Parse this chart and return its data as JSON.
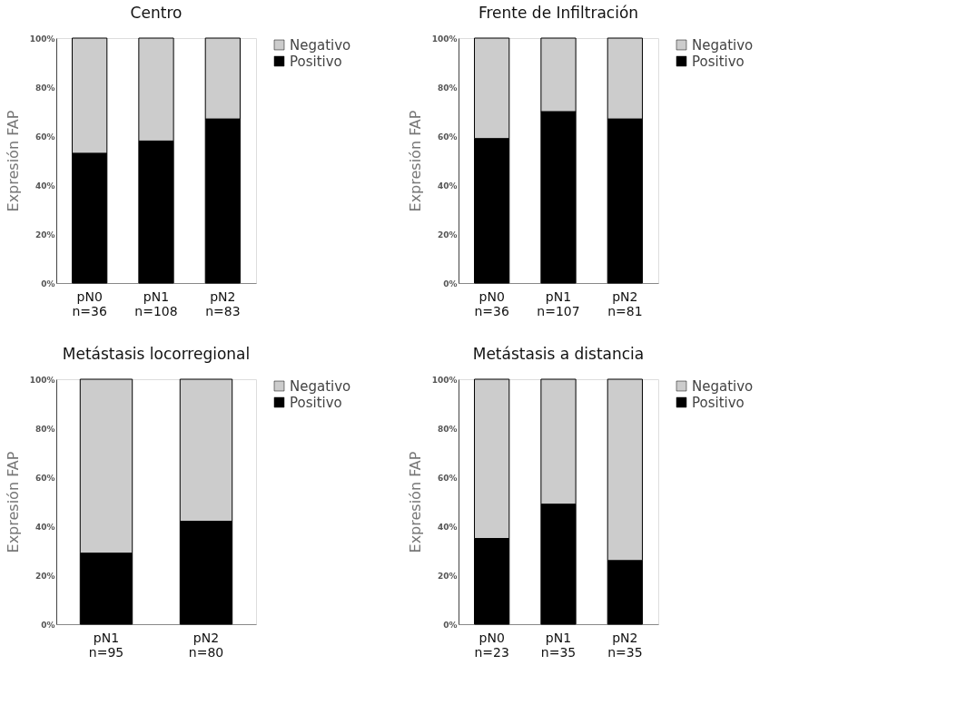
{
  "chart_data": [
    {
      "type": "bar",
      "title": "Centro",
      "ylabel": "Expresión FAP",
      "categories": [
        "pN0\nn=36",
        "pN1\nn=108",
        "pN2\nn=83"
      ],
      "stacked": true,
      "legend": "right",
      "grid": false,
      "ylim": [
        0,
        100
      ],
      "yticks": [
        {
          "value": 0,
          "label": "0%"
        },
        {
          "value": 20,
          "label": "20%"
        },
        {
          "value": 40,
          "label": "40%"
        },
        {
          "value": 60,
          "label": "60%"
        },
        {
          "value": 80,
          "label": "80%"
        },
        {
          "value": 100,
          "label": "100%"
        }
      ],
      "series": [
        {
          "name": "Positivo",
          "color": "#000000",
          "values": [
            53,
            58,
            67
          ]
        },
        {
          "name": "Negativo",
          "color": "#cccccc",
          "values": [
            47,
            42,
            33
          ]
        }
      ]
    },
    {
      "type": "bar",
      "title": "Frente de Infiltración",
      "ylabel": "Expresión FAP",
      "categories": [
        "pN0\nn=36",
        "pN1\nn=107",
        "pN2\nn=81"
      ],
      "stacked": true,
      "legend": "right",
      "grid": false,
      "ylim": [
        0,
        100
      ],
      "yticks": [
        {
          "value": 0,
          "label": "0%"
        },
        {
          "value": 20,
          "label": "20%"
        },
        {
          "value": 40,
          "label": "40%"
        },
        {
          "value": 60,
          "label": "60%"
        },
        {
          "value": 80,
          "label": "80%"
        },
        {
          "value": 100,
          "label": "100%"
        }
      ],
      "series": [
        {
          "name": "Positivo",
          "color": "#000000",
          "values": [
            59,
            70,
            67
          ]
        },
        {
          "name": "Negativo",
          "color": "#cccccc",
          "values": [
            41,
            30,
            33
          ]
        }
      ]
    },
    {
      "type": "bar",
      "title": "Metástasis locorregional",
      "ylabel": "Expresión FAP",
      "categories": [
        "pN1\nn=95",
        "pN2\nn=80"
      ],
      "stacked": true,
      "legend": "right",
      "grid": false,
      "ylim": [
        0,
        100
      ],
      "yticks": [
        {
          "value": 0,
          "label": "0%"
        },
        {
          "value": 20,
          "label": "20%"
        },
        {
          "value": 40,
          "label": "40%"
        },
        {
          "value": 60,
          "label": "60%"
        },
        {
          "value": 80,
          "label": "80%"
        },
        {
          "value": 100,
          "label": "100%"
        }
      ],
      "series": [
        {
          "name": "Positivo",
          "color": "#000000",
          "values": [
            29,
            42
          ]
        },
        {
          "name": "Negativo",
          "color": "#cccccc",
          "values": [
            71,
            58
          ]
        }
      ]
    },
    {
      "type": "bar",
      "title": "Metástasis a distancia",
      "ylabel": "Expresión FAP",
      "categories": [
        "pN0\nn=23",
        "pN1\nn=35",
        "pN2\nn=35"
      ],
      "stacked": true,
      "legend": "right",
      "grid": false,
      "ylim": [
        0,
        100
      ],
      "yticks": [
        {
          "value": 0,
          "label": "0%"
        },
        {
          "value": 20,
          "label": "20%"
        },
        {
          "value": 40,
          "label": "40%"
        },
        {
          "value": 60,
          "label": "60%"
        },
        {
          "value": 80,
          "label": "80%"
        },
        {
          "value": 100,
          "label": "100%"
        }
      ],
      "series": [
        {
          "name": "Positivo",
          "color": "#000000",
          "values": [
            35,
            49,
            26
          ]
        },
        {
          "name": "Negativo",
          "color": "#cccccc",
          "values": [
            65,
            51,
            74
          ]
        }
      ]
    }
  ]
}
